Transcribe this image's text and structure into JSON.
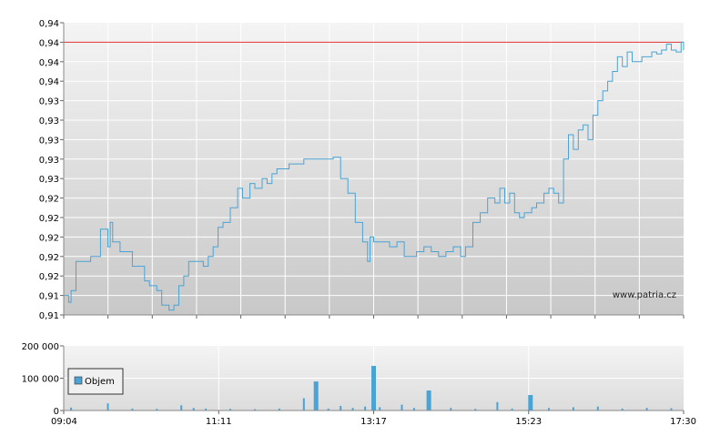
{
  "watermark": "www.patria.cz",
  "colors": {
    "price_line": "#4aa3d4",
    "reference_line": "#e03030",
    "volume_bar": "#4aa3d4"
  },
  "chart_data": [
    {
      "type": "line",
      "title": "",
      "xlabel": "",
      "ylabel": "",
      "y_tick_labels": [
        "0,94",
        "0,94",
        "0,94",
        "0,94",
        "0,93",
        "0,93",
        "0,93",
        "0,93",
        "0,93",
        "0,92",
        "0,92",
        "0,92",
        "0,92",
        "0,92",
        "0,91",
        "0,91"
      ],
      "x_tick_labels": [
        "09:04",
        "11:11",
        "13:17",
        "15:23",
        "17:30"
      ],
      "xlim": [
        "09:04",
        "17:30"
      ],
      "ylim": [
        0.91,
        0.94
      ],
      "reference_line_y": 0.938,
      "grid": true,
      "series": [
        {
          "x": [
            "09:04",
            "09:08",
            "09:10",
            "09:14",
            "09:18",
            "09:26",
            "09:34",
            "09:38",
            "09:40",
            "09:42",
            "09:44",
            "09:50",
            "09:56",
            "10:00",
            "10:04",
            "10:10",
            "10:14",
            "10:20",
            "10:24",
            "10:30",
            "10:34",
            "10:38",
            "10:42",
            "10:46",
            "10:52",
            "10:58",
            "11:02",
            "11:06",
            "11:10",
            "11:14",
            "11:20",
            "11:26",
            "11:30",
            "11:36",
            "11:40",
            "11:46",
            "11:50",
            "11:54",
            "11:58",
            "12:02",
            "12:08",
            "12:14",
            "12:20",
            "12:26",
            "12:32",
            "12:38",
            "12:44",
            "12:50",
            "12:56",
            "13:02",
            "13:08",
            "13:12",
            "13:14",
            "13:17",
            "13:20",
            "13:30",
            "13:36",
            "13:42",
            "13:48",
            "13:52",
            "13:58",
            "14:04",
            "14:10",
            "14:16",
            "14:22",
            "14:28",
            "14:32",
            "14:38",
            "14:44",
            "14:50",
            "14:56",
            "15:00",
            "15:04",
            "15:08",
            "15:12",
            "15:16",
            "15:20",
            "15:26",
            "15:30",
            "15:36",
            "15:40",
            "15:44",
            "15:48",
            "15:52",
            "15:56",
            "16:00",
            "16:04",
            "16:08",
            "16:12",
            "16:16",
            "16:20",
            "16:24",
            "16:28",
            "16:32",
            "16:36",
            "16:40",
            "16:44",
            "16:48",
            "16:52",
            "16:56",
            "17:00",
            "17:04",
            "17:08",
            "17:12",
            "17:16",
            "17:20",
            "17:24",
            "17:28",
            "17:30"
          ],
          "y": [
            0.912,
            0.9113,
            0.9125,
            0.9155,
            0.9155,
            0.916,
            0.9188,
            0.9188,
            0.917,
            0.9195,
            0.9175,
            0.9165,
            0.9165,
            0.915,
            0.915,
            0.9135,
            0.913,
            0.9125,
            0.911,
            0.9105,
            0.911,
            0.913,
            0.914,
            0.9155,
            0.9155,
            0.915,
            0.916,
            0.917,
            0.919,
            0.9195,
            0.921,
            0.923,
            0.922,
            0.9235,
            0.923,
            0.924,
            0.9235,
            0.9245,
            0.925,
            0.925,
            0.9255,
            0.9255,
            0.926,
            0.926,
            0.926,
            0.926,
            0.9262,
            0.924,
            0.9225,
            0.9195,
            0.9175,
            0.9155,
            0.918,
            0.9175,
            0.9175,
            0.917,
            0.9175,
            0.916,
            0.916,
            0.9165,
            0.917,
            0.9165,
            0.916,
            0.9165,
            0.917,
            0.916,
            0.917,
            0.9195,
            0.9205,
            0.922,
            0.9215,
            0.923,
            0.9215,
            0.9225,
            0.9205,
            0.92,
            0.9205,
            0.921,
            0.9215,
            0.9225,
            0.923,
            0.9225,
            0.9215,
            0.926,
            0.9285,
            0.927,
            0.929,
            0.9295,
            0.928,
            0.9305,
            0.932,
            0.933,
            0.934,
            0.935,
            0.9365,
            0.9355,
            0.937,
            0.936,
            0.936,
            0.9365,
            0.9365,
            0.937,
            0.9368,
            0.9372,
            0.9378,
            0.9372,
            0.937,
            0.938,
            0.9372
          ]
        }
      ]
    },
    {
      "type": "bar",
      "title": "",
      "xlabel": "",
      "ylabel": "",
      "y_tick_labels": [
        "200 000",
        "100 000",
        "0"
      ],
      "x_tick_labels": [
        "09:04",
        "11:11",
        "13:17",
        "15:23",
        "17:30"
      ],
      "ylim": [
        0,
        200000
      ],
      "grid": true,
      "legend": {
        "position": "left",
        "entries": [
          "Objem"
        ]
      },
      "series": [
        {
          "name": "Objem",
          "x": [
            "09:10",
            "09:40",
            "10:00",
            "10:20",
            "10:40",
            "10:50",
            "11:00",
            "11:20",
            "11:40",
            "12:00",
            "12:20",
            "12:30",
            "12:40",
            "12:50",
            "13:00",
            "13:10",
            "13:17",
            "13:22",
            "13:40",
            "13:50",
            "14:02",
            "14:20",
            "14:40",
            "14:58",
            "15:10",
            "15:25",
            "15:40",
            "16:00",
            "16:20",
            "16:40",
            "17:00",
            "17:20"
          ],
          "values": [
            9000,
            22000,
            6000,
            5000,
            16000,
            8000,
            6000,
            5000,
            4000,
            6000,
            38000,
            90000,
            6000,
            14000,
            8000,
            12000,
            138000,
            10000,
            18000,
            8000,
            62000,
            8000,
            5000,
            26000,
            6000,
            48000,
            8000,
            10000,
            12000,
            6000,
            8000,
            7000
          ]
        }
      ]
    }
  ]
}
